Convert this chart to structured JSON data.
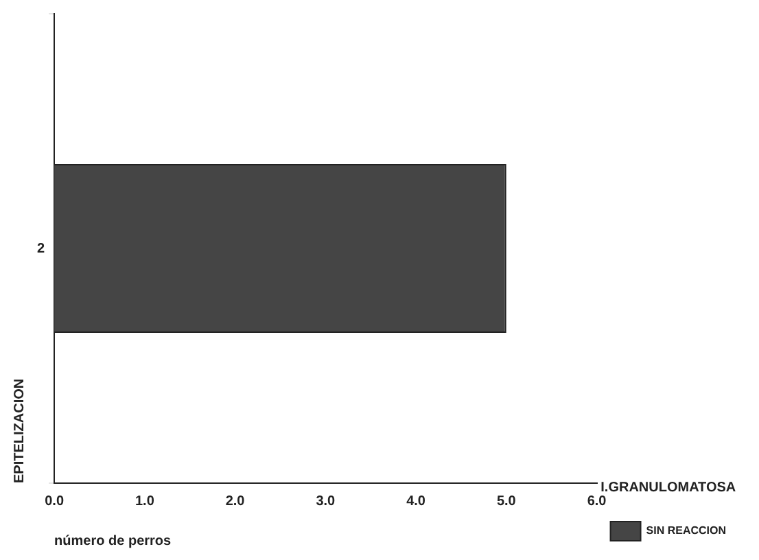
{
  "chart_data": {
    "type": "bar",
    "orientation": "horizontal",
    "xlabel": "número de perros",
    "ylabel": "EPITELIZACION",
    "legend_title": "I.GRANULOMATOSA",
    "legend": "bottom right",
    "grid": false,
    "categories": [
      "2"
    ],
    "series": [
      {
        "name": "SIN REACCION",
        "color": "#454545",
        "values": [
          5.0
        ]
      }
    ],
    "xlim": [
      0,
      6
    ],
    "xticks": [
      {
        "value": 0,
        "label": "0.0"
      },
      {
        "value": 1,
        "label": "1.0"
      },
      {
        "value": 2,
        "label": "2.0"
      },
      {
        "value": 3,
        "label": "3.0"
      },
      {
        "value": 4,
        "label": "4.0"
      },
      {
        "value": 5,
        "label": "5.0"
      },
      {
        "value": 6,
        "label": "6.0"
      }
    ]
  }
}
